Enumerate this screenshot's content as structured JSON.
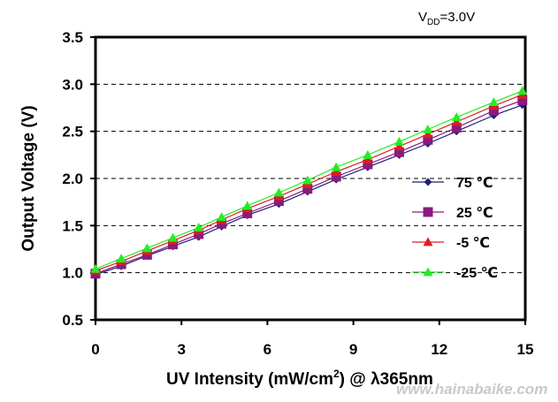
{
  "chart_data": {
    "type": "line",
    "xlabel_main": "UV Intensity (mW/cm",
    "xlabel_sup": "2",
    "xlabel_tail": ") @ λ365nm",
    "ylabel": "Output Voltage (V)",
    "annotation_main": "V",
    "annotation_sub": "DD",
    "annotation_tail": "=3.0V",
    "watermark": "www.hainabaike.com",
    "xlim": [
      0,
      15
    ],
    "ylim": [
      0.5,
      3.5
    ],
    "x_ticks": [
      "0",
      "3",
      "6",
      "9",
      "12",
      "15"
    ],
    "y_ticks": [
      "0.5",
      "1.0",
      "1.5",
      "2.0",
      "2.5",
      "3.0",
      "3.5"
    ],
    "grid": "horizontal dashed",
    "legend_position": "right",
    "x": [
      0,
      0.9,
      1.8,
      2.7,
      3.6,
      4.4,
      5.3,
      6.4,
      7.4,
      8.4,
      9.5,
      10.6,
      11.6,
      12.6,
      13.9,
      14.9
    ],
    "series": [
      {
        "name": "75 ℃",
        "marker": "diamond",
        "color": "#1f1f7a",
        "values": [
          0.98,
          1.07,
          1.18,
          1.28,
          1.38,
          1.49,
          1.61,
          1.73,
          1.86,
          1.99,
          2.12,
          2.25,
          2.37,
          2.5,
          2.67,
          2.78
        ]
      },
      {
        "name": "25 ℃",
        "marker": "square",
        "color": "#8b1a7e",
        "values": [
          0.99,
          1.09,
          1.19,
          1.3,
          1.41,
          1.52,
          1.63,
          1.76,
          1.89,
          2.02,
          2.15,
          2.28,
          2.41,
          2.54,
          2.72,
          2.83
        ]
      },
      {
        "name": "-5 ℃",
        "marker": "triangle",
        "color": "#dd1f1f",
        "values": [
          1.02,
          1.12,
          1.23,
          1.34,
          1.45,
          1.56,
          1.68,
          1.81,
          1.94,
          2.07,
          2.2,
          2.34,
          2.47,
          2.6,
          2.77,
          2.89
        ]
      },
      {
        "name": "-25 ℃",
        "marker": "triangle",
        "color": "#22ee22",
        "values": [
          1.04,
          1.15,
          1.26,
          1.37,
          1.48,
          1.59,
          1.71,
          1.85,
          1.98,
          2.12,
          2.25,
          2.39,
          2.52,
          2.65,
          2.81,
          2.93
        ]
      }
    ]
  }
}
